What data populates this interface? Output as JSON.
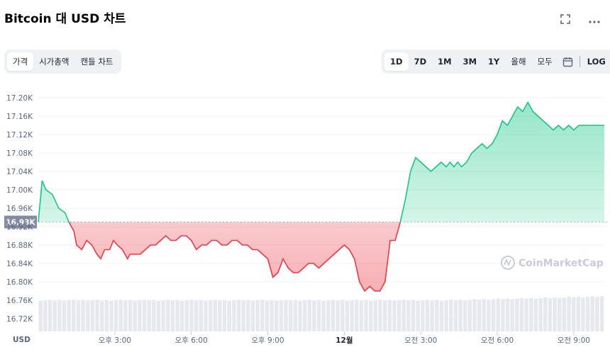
{
  "header": {
    "title": "Bitcoin 대 USD 차트",
    "fullscreen_icon": "fullscreen-icon",
    "more_icon": "more-icon"
  },
  "tabs_left": [
    {
      "label": "가격",
      "active": true
    },
    {
      "label": "시가총액",
      "active": false
    },
    {
      "label": "캔들 차트",
      "active": false
    }
  ],
  "tabs_right": [
    {
      "label": "1D",
      "active": true
    },
    {
      "label": "7D",
      "active": false
    },
    {
      "label": "1M",
      "active": false
    },
    {
      "label": "3M",
      "active": false
    },
    {
      "label": "1Y",
      "active": false
    },
    {
      "label": "올해",
      "active": false
    },
    {
      "label": "모두",
      "active": false
    }
  ],
  "calendar_icon": "calendar-icon",
  "log_label": "LOG",
  "currency_label": "USD",
  "watermark": "CoinMarketCap",
  "colors": {
    "up": "#16c784",
    "down": "#ea3943",
    "baseline_label_bg": "#858ca2"
  },
  "chart_data": {
    "type": "area",
    "baseline": 16.93,
    "baseline_label": "16.93K",
    "yticks": [
      "17.20K",
      "17.16K",
      "17.12K",
      "17.08K",
      "17.04K",
      "17.00K",
      "16.96K",
      "16.92K",
      "16.88K",
      "16.84K",
      "16.80K",
      "16.76K",
      "16.72K"
    ],
    "ylim": [
      16.72,
      17.2
    ],
    "xticks": [
      "오후 3:00",
      "오후 6:00",
      "오후 9:00",
      "12월",
      "오전 3:00",
      "오전 6:00",
      "오전 9:00"
    ],
    "xtick_positions_hours": [
      3,
      6,
      9,
      12,
      15,
      18,
      21
    ],
    "x_hours": [
      0,
      0.15,
      0.3,
      0.55,
      0.8,
      1.05,
      1.2,
      1.4,
      1.5,
      1.7,
      1.9,
      2.1,
      2.3,
      2.45,
      2.6,
      2.8,
      2.95,
      3.1,
      3.3,
      3.5,
      3.6,
      3.8,
      4.0,
      4.2,
      4.4,
      4.6,
      4.8,
      5.0,
      5.2,
      5.4,
      5.6,
      5.8,
      6.0,
      6.2,
      6.4,
      6.6,
      6.8,
      7.0,
      7.2,
      7.4,
      7.6,
      7.8,
      8.0,
      8.2,
      8.4,
      8.6,
      8.8,
      9.0,
      9.2,
      9.4,
      9.6,
      9.8,
      10.0,
      10.2,
      10.4,
      10.6,
      10.8,
      11.0,
      11.2,
      11.4,
      11.6,
      11.8,
      12.0,
      12.2,
      12.4,
      12.6,
      12.8,
      13.0,
      13.2,
      13.4,
      13.6,
      13.8,
      14.0,
      14.2,
      14.4,
      14.6,
      14.8,
      15.0,
      15.2,
      15.4,
      15.6,
      15.8,
      16.0,
      16.15,
      16.3,
      16.45,
      16.6,
      16.8,
      17.0,
      17.2,
      17.4,
      17.6,
      17.8,
      18.0,
      18.2,
      18.4,
      18.6,
      18.8,
      19.0,
      19.2,
      19.4,
      19.6,
      19.8,
      20.0,
      20.2,
      20.4,
      20.6,
      20.8,
      21.0,
      21.2,
      21.4,
      21.6,
      21.8,
      22.0,
      22.2
    ],
    "price_k": [
      16.93,
      17.02,
      17.0,
      16.99,
      16.96,
      16.95,
      16.93,
      16.91,
      16.88,
      16.87,
      16.89,
      16.88,
      16.86,
      16.85,
      16.87,
      16.87,
      16.89,
      16.88,
      16.87,
      16.85,
      16.86,
      16.86,
      16.86,
      16.87,
      16.88,
      16.88,
      16.89,
      16.9,
      16.89,
      16.89,
      16.9,
      16.9,
      16.89,
      16.87,
      16.88,
      16.88,
      16.89,
      16.89,
      16.88,
      16.88,
      16.89,
      16.89,
      16.88,
      16.88,
      16.87,
      16.87,
      16.86,
      16.85,
      16.81,
      16.82,
      16.85,
      16.83,
      16.82,
      16.82,
      16.83,
      16.84,
      16.84,
      16.83,
      16.84,
      16.85,
      16.86,
      16.87,
      16.88,
      16.87,
      16.85,
      16.8,
      16.78,
      16.79,
      16.78,
      16.78,
      16.8,
      16.89,
      16.89,
      16.93,
      16.98,
      17.04,
      17.07,
      17.06,
      17.05,
      17.04,
      17.05,
      17.06,
      17.05,
      17.06,
      17.05,
      17.06,
      17.05,
      17.06,
      17.08,
      17.09,
      17.1,
      17.09,
      17.1,
      17.12,
      17.15,
      17.14,
      17.16,
      17.18,
      17.17,
      17.19,
      17.17,
      17.16,
      17.15,
      17.14,
      17.13,
      17.14,
      17.13,
      17.14,
      17.13,
      17.14,
      17.14,
      17.14,
      17.14,
      17.14,
      17.14
    ],
    "volume_bar_count": 120,
    "grid": true
  }
}
